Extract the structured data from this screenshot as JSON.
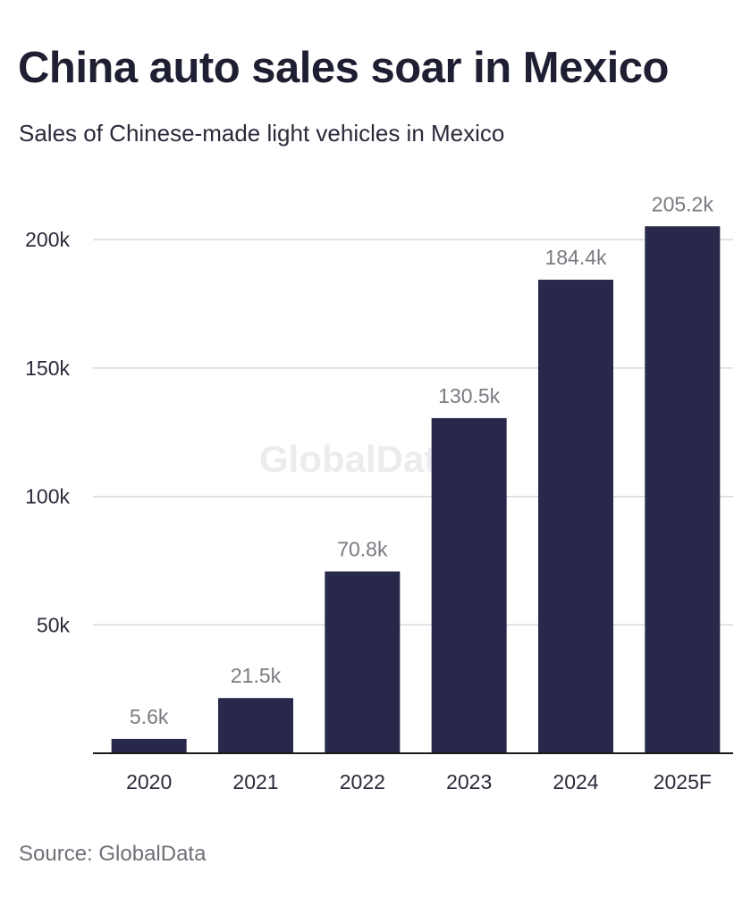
{
  "header": {
    "title": "China auto sales soar in Mexico",
    "subtitle": "Sales of Chinese-made light vehicles in Mexico"
  },
  "footer": {
    "source": "Source: GlobalData"
  },
  "watermark": "GlobalData",
  "colors": {
    "bar": "#28284a",
    "grid": "#d9d9de",
    "axis": "#1a1a1a",
    "label": "#7a7a82",
    "tick": "#2a2a3a"
  },
  "chart_data": {
    "type": "bar",
    "title": "China auto sales soar in Mexico",
    "subtitle": "Sales of Chinese-made light vehicles in Mexico",
    "categories": [
      "2020",
      "2021",
      "2022",
      "2023",
      "2024",
      "2025F"
    ],
    "values": [
      5.6,
      21.5,
      70.8,
      130.5,
      184.4,
      205.2
    ],
    "data_labels": [
      "5.6k",
      "21.5k",
      "70.8k",
      "130.5k",
      "184.4k",
      "205.2k"
    ],
    "yticks": [
      50,
      100,
      150,
      200
    ],
    "ytick_labels": [
      "50k",
      "100k",
      "150k",
      "200k"
    ],
    "ylim": [
      0,
      210
    ],
    "grid": true,
    "legend": "none",
    "source": "Source: GlobalData"
  }
}
